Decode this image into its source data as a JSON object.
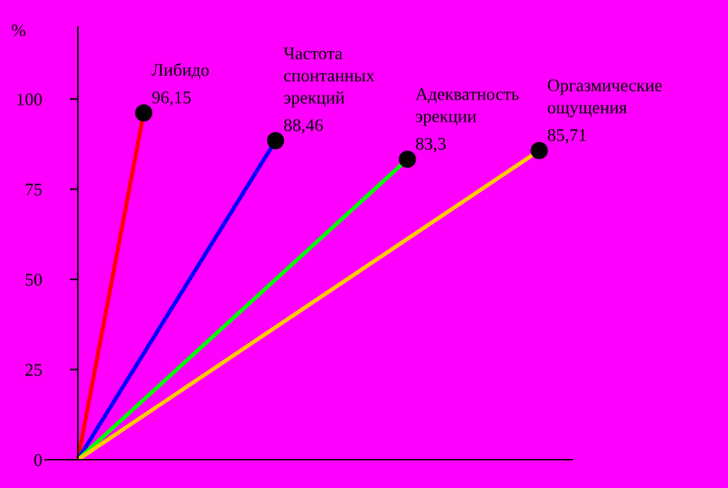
{
  "chart_data": {
    "type": "line",
    "ylabel": "%",
    "categories": [
      null,
      null,
      null,
      null,
      null,
      null,
      null,
      null
    ],
    "ylim": [
      0,
      120
    ],
    "yticks": [
      0,
      25,
      50,
      75,
      100
    ],
    "tick_labels": "y",
    "grid": false,
    "legend": false,
    "line_style": "solid",
    "series": [
      {
        "name": "Либидо",
        "color": "#ff0000",
        "values": [
          0,
          96.15,
          null,
          null,
          null,
          null,
          null,
          null
        ],
        "value_labels": [
          null,
          "96,15",
          null,
          null,
          null,
          null,
          null,
          null
        ]
      },
      {
        "name": "Частота\nспонтанных\nэрекций",
        "color": "#0000ff",
        "values": [
          0,
          null,
          null,
          88.46,
          null,
          null,
          null,
          null
        ],
        "value_labels": [
          null,
          null,
          null,
          "88,46",
          null,
          null,
          null,
          null
        ]
      },
      {
        "name": "Адекватность\nэрекции",
        "color": "#00ff00",
        "values": [
          0,
          null,
          null,
          null,
          null,
          83.3,
          null,
          null
        ],
        "value_labels": [
          null,
          null,
          null,
          null,
          null,
          "83,3",
          null,
          null
        ]
      },
      {
        "name": "Оргазмические\nощущения",
        "color": "#ffcc00",
        "values": [
          0,
          null,
          null,
          null,
          null,
          null,
          null,
          85.71
        ],
        "value_labels": [
          null,
          null,
          null,
          null,
          null,
          null,
          null,
          "85,71"
        ]
      },
      {
        "type": "scatter",
        "marker": "circle",
        "color": "#000000",
        "values": [
          null,
          96.15,
          null,
          88.46,
          null,
          83.3,
          null,
          85.71
        ]
      }
    ]
  }
}
